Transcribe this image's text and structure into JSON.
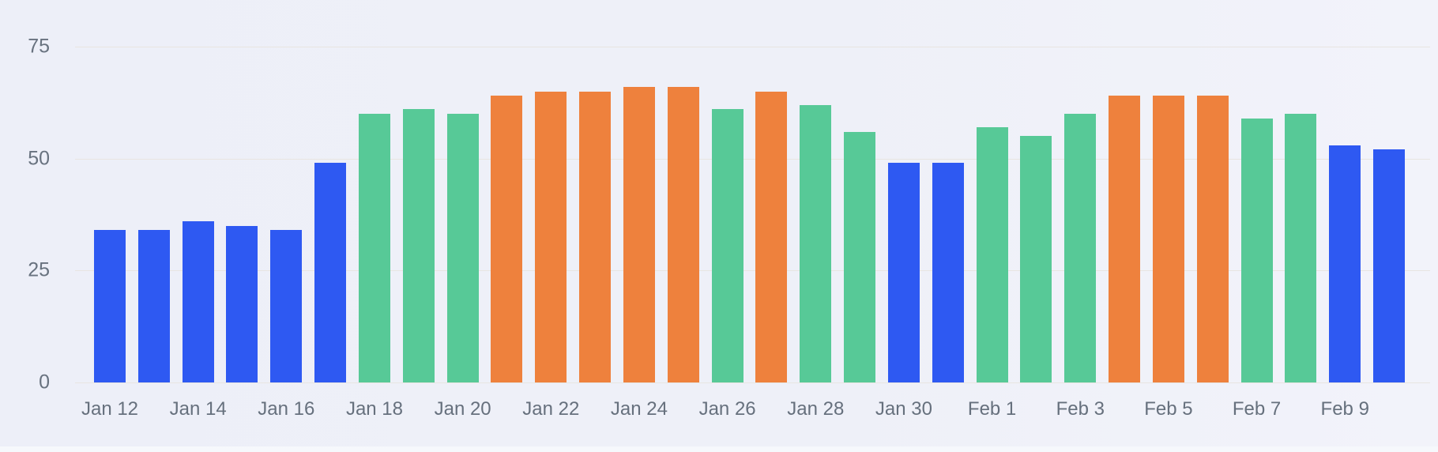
{
  "page": {
    "background_color": "#eef0f8"
  },
  "chart_data": {
    "type": "bar",
    "title": "",
    "xlabel": "",
    "ylabel": "",
    "x": [
      "Jan 12",
      "Jan 13",
      "Jan 14",
      "Jan 15",
      "Jan 16",
      "Jan 17",
      "Jan 18",
      "Jan 19",
      "Jan 20",
      "Jan 21",
      "Jan 22",
      "Jan 23",
      "Jan 24",
      "Jan 25",
      "Jan 26",
      "Jan 27",
      "Jan 28",
      "Jan 29",
      "Jan 30",
      "Jan 31",
      "Feb 1",
      "Feb 2",
      "Feb 3",
      "Feb 4",
      "Feb 5",
      "Feb 6",
      "Feb 7",
      "Feb 8",
      "Feb 9",
      "Feb 10"
    ],
    "values": [
      34,
      34,
      36,
      35,
      34,
      49,
      60,
      61,
      60,
      64,
      65,
      65,
      66,
      66,
      61,
      65,
      62,
      56,
      49,
      49,
      57,
      55,
      60,
      64,
      64,
      64,
      59,
      60,
      53,
      52
    ],
    "bar_colors": [
      "blue",
      "blue",
      "blue",
      "blue",
      "blue",
      "blue",
      "green",
      "green",
      "green",
      "orange",
      "orange",
      "orange",
      "orange",
      "orange",
      "green",
      "orange",
      "green",
      "green",
      "blue",
      "blue",
      "green",
      "green",
      "green",
      "orange",
      "orange",
      "orange",
      "green",
      "green",
      "blue",
      "blue"
    ],
    "palette": {
      "blue": "#2e59f2",
      "green": "#57c997",
      "orange": "#ee813d"
    },
    "y_ticks": [
      0,
      25,
      50,
      75
    ],
    "y_tick_labels": [
      "0",
      "25",
      "50",
      "75"
    ],
    "x_tick_labels": [
      "Jan 12",
      "Jan 14",
      "Jan 16",
      "Jan 18",
      "Jan 20",
      "Jan 22",
      "Jan 24",
      "Jan 26",
      "Jan 28",
      "Jan 30",
      "Feb 1",
      "Feb 3",
      "Feb 5",
      "Feb 7",
      "Feb 9"
    ],
    "ylim": [
      0,
      78
    ],
    "grid": "horizontal-only",
    "grid_color": "#e8e5e1",
    "axis_label_color": "#68727f",
    "legend": "none"
  }
}
